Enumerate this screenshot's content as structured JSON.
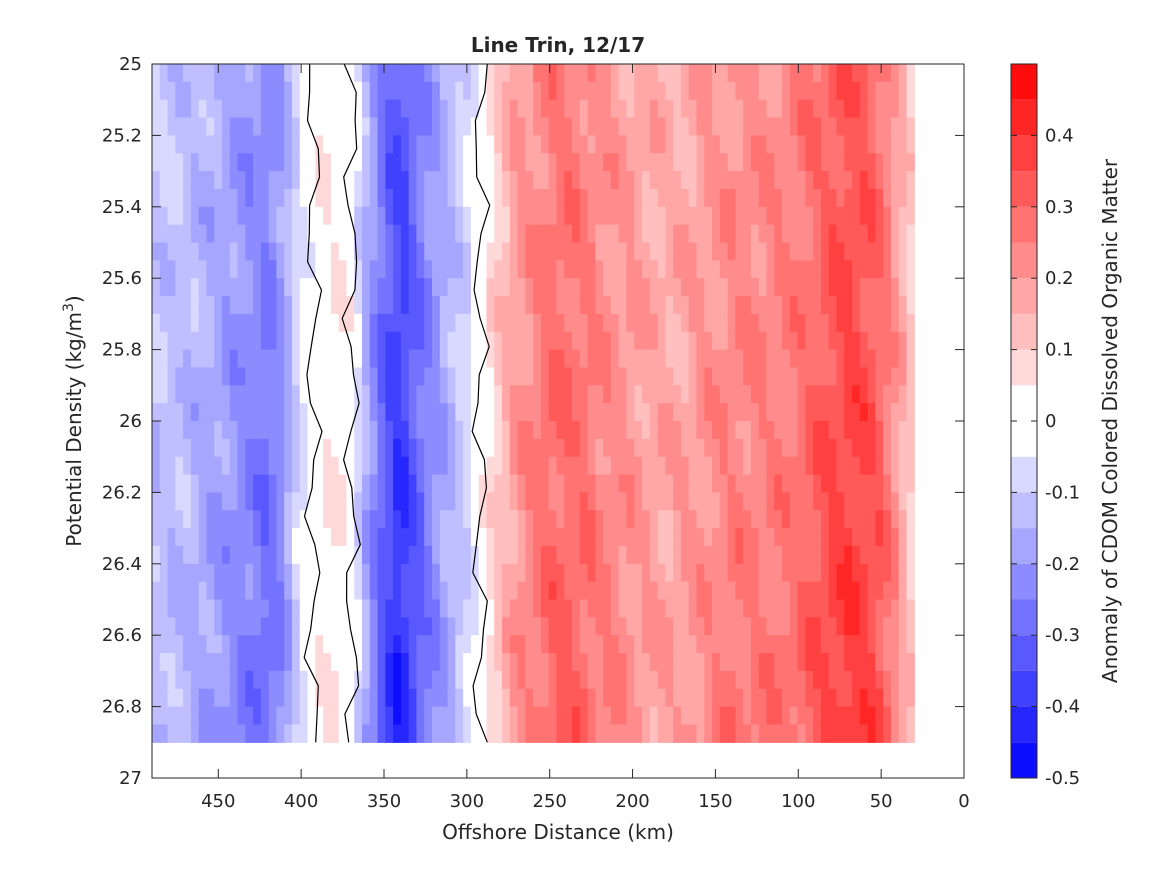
{
  "chart_data": {
    "type": "heatmap",
    "subtype": "filled-contour",
    "title": "Line Trin, 12/17",
    "xlabel": "Offshore Distance (km)",
    "ylabel_main": "Potential Density (kg/m",
    "ylabel_sup": "3",
    "ylabel_end": ")",
    "xlim": [
      490,
      0
    ],
    "x_reversed": true,
    "ylim": [
      25,
      27
    ],
    "y_reversed": true,
    "x_ticks": [
      450,
      400,
      350,
      300,
      250,
      200,
      150,
      100,
      50,
      0
    ],
    "x_tick_labels": [
      "450",
      "400",
      "350",
      "300",
      "250",
      "200",
      "150",
      "100",
      "50",
      "0"
    ],
    "y_ticks": [
      25,
      25.2,
      25.4,
      25.6,
      25.8,
      26,
      26.2,
      26.4,
      26.6,
      26.8,
      27
    ],
    "y_tick_labels": [
      "25",
      "25.2",
      "25.4",
      "25.6",
      "25.8",
      "26",
      "26.2",
      "26.4",
      "26.6",
      "26.8",
      "27"
    ],
    "colorbar": {
      "label": "Anomaly of CDOM Colored Dissolved Organic Matter",
      "clim": [
        -0.5,
        0.5
      ],
      "level_step": 0.05,
      "ticks": [
        -0.5,
        -0.4,
        -0.3,
        -0.2,
        -0.1,
        0,
        0.1,
        0.2,
        0.3,
        0.4
      ],
      "tick_labels": [
        "-0.5",
        "-0.4",
        "-0.3",
        "-0.2",
        "-0.1",
        "0",
        "0.1",
        "0.2",
        "0.3",
        "0.4"
      ],
      "negative_color": "#0000ff",
      "neutral_color": "#ffffff",
      "positive_color": "#ff0000"
    },
    "data_extent": {
      "y_max": 26.9,
      "x_min": 30
    },
    "profiles": {
      "x": [
        490,
        475,
        460,
        445,
        430,
        420,
        410,
        400,
        390,
        380,
        370,
        360,
        350,
        340,
        330,
        320,
        310,
        300,
        290,
        280,
        270,
        260,
        250,
        240,
        230,
        220,
        210,
        200,
        190,
        180,
        170,
        160,
        150,
        140,
        130,
        120,
        110,
        100,
        90,
        80,
        70,
        60,
        50,
        40,
        30
      ],
      "values": [
        -0.12,
        -0.13,
        -0.16,
        -0.2,
        -0.24,
        -0.27,
        -0.2,
        -0.05,
        0.02,
        0.04,
        0.01,
        -0.18,
        -0.32,
        -0.4,
        -0.3,
        -0.22,
        -0.15,
        -0.08,
        0.02,
        0.12,
        0.2,
        0.24,
        0.28,
        0.29,
        0.27,
        0.24,
        0.22,
        0.2,
        0.18,
        0.17,
        0.18,
        0.2,
        0.22,
        0.24,
        0.24,
        0.24,
        0.25,
        0.27,
        0.3,
        0.34,
        0.36,
        0.35,
        0.3,
        0.2,
        0.08
      ]
    }
  }
}
